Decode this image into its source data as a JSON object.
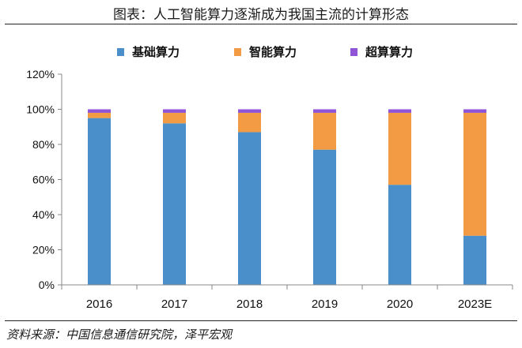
{
  "header": {
    "title": "图表：人工智能算力逐渐成为我国主流的计算形态"
  },
  "footer": {
    "source": "资料来源：中国信息通信研究院，泽平宏观"
  },
  "colors": {
    "base": "#4a8fc9",
    "smart": "#f39a45",
    "super": "#8f55d6",
    "axis": "#888888"
  },
  "chart_data": {
    "type": "bar",
    "stacked": true,
    "categories": [
      "2016",
      "2017",
      "2018",
      "2019",
      "2020",
      "2023E"
    ],
    "series": [
      {
        "name": "基础算力",
        "values": [
          95,
          92,
          87,
          77,
          57,
          28
        ]
      },
      {
        "name": "智能算力",
        "values": [
          3,
          6,
          11,
          21,
          41,
          70
        ]
      },
      {
        "name": "超算算力",
        "values": [
          2,
          2,
          2,
          2,
          2,
          2
        ]
      }
    ],
    "ylim": [
      0,
      120
    ],
    "yticks": [
      "0%",
      "20%",
      "40%",
      "60%",
      "80%",
      "100%",
      "120%"
    ],
    "legend_position": "top",
    "grid": false
  }
}
